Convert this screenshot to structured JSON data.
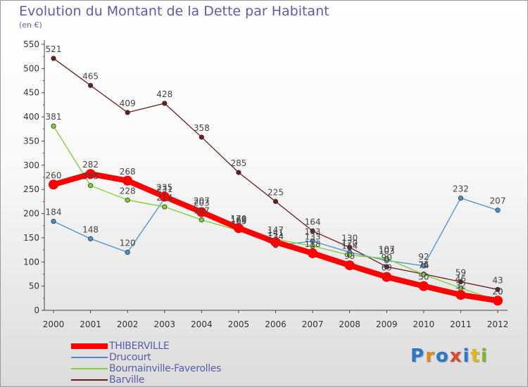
{
  "title": "Evolution du Montant de la Dette par Habitant",
  "subtitle": "(en €)",
  "logo": {
    "text": "Proxiti"
  },
  "legend": [
    {
      "name": "THIBERVILLE",
      "color": "#ff0000",
      "width": 8
    },
    {
      "name": "Drucourt",
      "color": "#4a90d0",
      "width": 1.5
    },
    {
      "name": "Bournainville-Faverolles",
      "color": "#7ed030",
      "width": 1.5
    },
    {
      "name": "Barville",
      "color": "#6b1c1c",
      "width": 1.5
    }
  ],
  "chart_data": {
    "type": "line",
    "title": "Evolution du Montant de la Dette par Habitant",
    "subtitle": "(en €)",
    "x": [
      "2000",
      "2001",
      "2002",
      "2003",
      "2004",
      "2005",
      "2006",
      "2007",
      "2008",
      "2009",
      "2010",
      "2011",
      "2012"
    ],
    "ylim": [
      0,
      550
    ],
    "yticks": [
      0,
      50,
      100,
      150,
      200,
      250,
      300,
      350,
      400,
      450,
      500,
      550
    ],
    "grid": false,
    "legend_position": "bottom-left",
    "series": [
      {
        "name": "Barville",
        "color": "#6b1c1c",
        "values": [
          521,
          465,
          409,
          428,
          358,
          285,
          225,
          164,
          130,
          90,
          75,
          59,
          43
        ],
        "labels": [
          "521",
          "465",
          "409",
          "428",
          "358",
          "285",
          "225",
          "164",
          "130",
          "90",
          "75",
          "59",
          "43"
        ]
      },
      {
        "name": "Drucourt",
        "color": "#4a90d0",
        "values": [
          184,
          148,
          120,
          231,
          207,
          168,
          134,
          143,
          120,
          103,
          92,
          232,
          207
        ],
        "labels": [
          "184",
          "148",
          "120",
          "231",
          "207",
          "168",
          "134",
          "143",
          "120",
          "103",
          "92",
          "232",
          "207"
        ]
      },
      {
        "name": "Bournainville-Faverolles",
        "color": "#7ed030",
        "values": [
          381,
          258,
          228,
          214,
          187,
          165,
          147,
          133,
          114,
          107,
          74,
          46,
          20
        ],
        "labels": [
          "381",
          "258",
          "228",
          "214",
          "187",
          "165",
          "147",
          "133",
          "114",
          "107",
          "74",
          "46",
          "20"
        ]
      },
      {
        "name": "THIBERVILLE",
        "color": "#ff0000",
        "values": [
          260,
          282,
          268,
          235,
          203,
          170,
          141,
          118,
          93,
          69,
          50,
          32,
          20
        ],
        "labels": [
          "260",
          "282",
          "268",
          "235",
          "203",
          "170",
          "141",
          "118",
          "93",
          "69",
          "50",
          "32",
          "20"
        ]
      }
    ]
  }
}
